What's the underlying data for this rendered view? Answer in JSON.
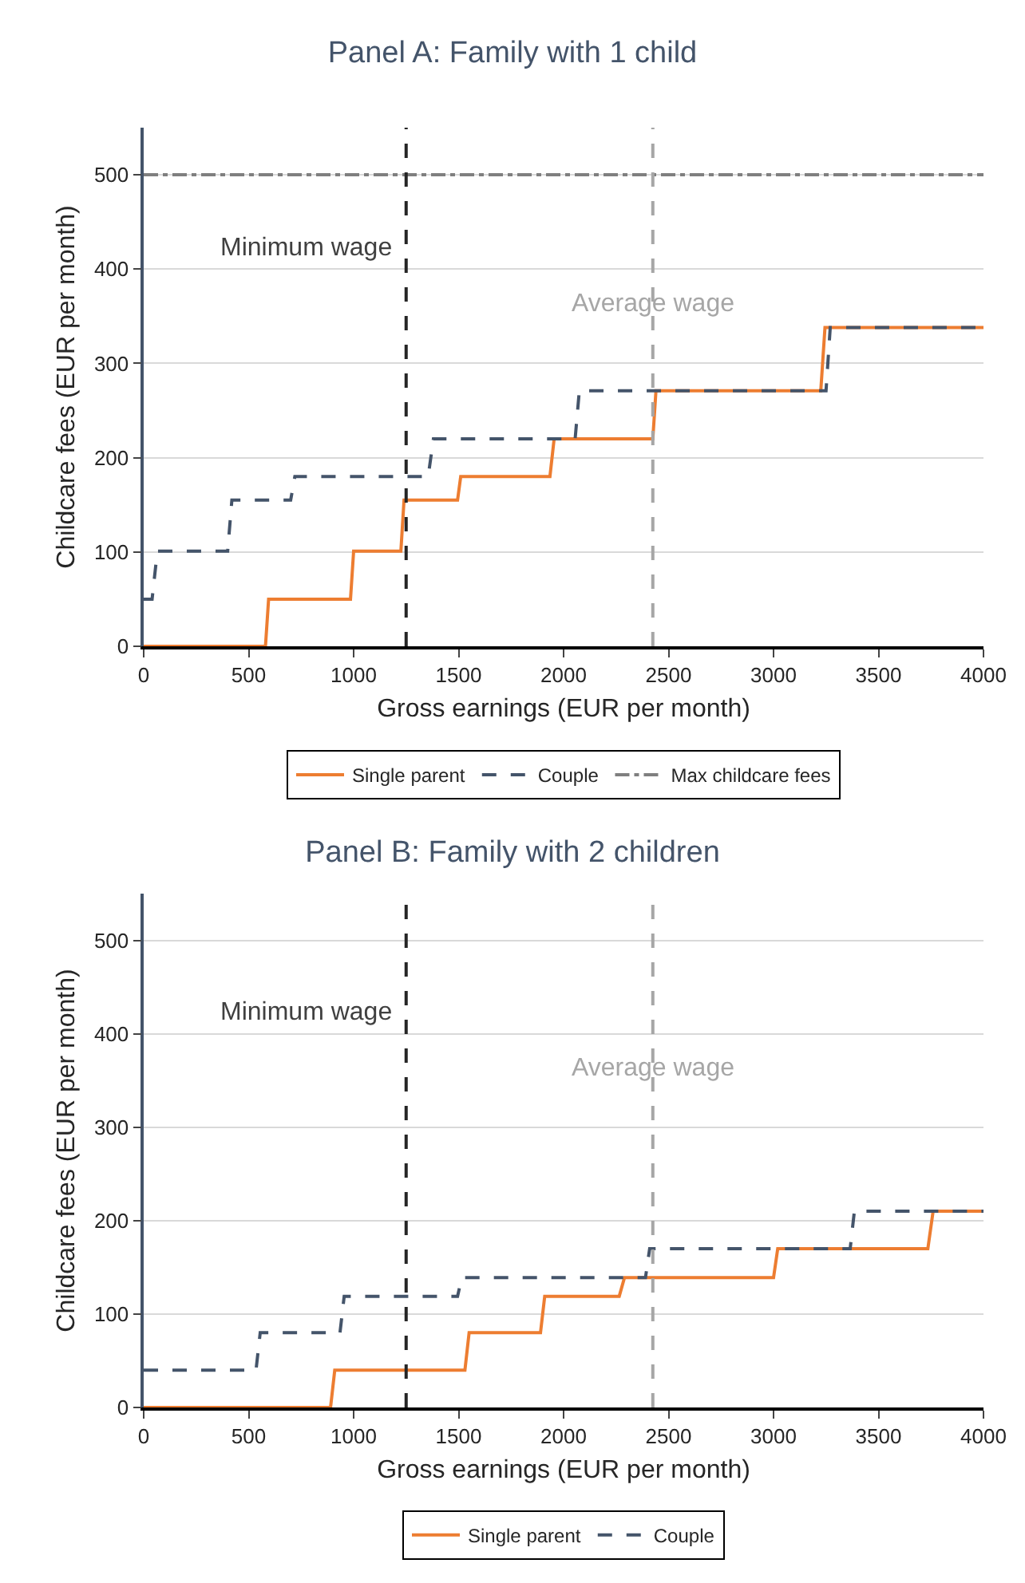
{
  "chart_data": [
    {
      "type": "line",
      "title": "Panel A: Family with 1 child",
      "xlabel": "Gross earnings (EUR per month)",
      "ylabel": "Childcare fees (EUR per month)",
      "xlim": [
        0,
        4000
      ],
      "xticks": [
        0,
        500,
        1000,
        1500,
        2000,
        2500,
        3000,
        3500,
        4000
      ],
      "ylim": [
        0,
        550
      ],
      "yticks": [
        0,
        100,
        200,
        300,
        400,
        500
      ],
      "grid": "y",
      "legend": "bottom",
      "series": [
        {
          "name": "Single parent",
          "color": "#ed7d31",
          "line_style": "solid",
          "x": [
            0,
            580,
            595,
            985,
            1000,
            1225,
            1240,
            1495,
            1510,
            1935,
            1955,
            2425,
            2440,
            3225,
            3245,
            4000
          ],
          "values": [
            0,
            0,
            50,
            50,
            101,
            101,
            155,
            155,
            180,
            180,
            220,
            220,
            271,
            271,
            338,
            338
          ]
        },
        {
          "name": "Couple",
          "color": "#44546a",
          "line_style": "dashed",
          "x": [
            0,
            40,
            65,
            400,
            420,
            700,
            720,
            1355,
            1380,
            2055,
            2075,
            3250,
            3270,
            4000
          ],
          "values": [
            50,
            50,
            101,
            101,
            155,
            155,
            180,
            180,
            220,
            220,
            271,
            271,
            338,
            338
          ]
        },
        {
          "name": "Max childcare fees",
          "color": "#7f7f7f",
          "line_style": "dashdot",
          "x": [
            0,
            4000
          ],
          "values": [
            500,
            500
          ]
        }
      ],
      "ref_lines": [
        {
          "axis": "x",
          "value": 1250,
          "label": "Minimum wage",
          "color": "#262626",
          "line_style": "dashed"
        },
        {
          "axis": "x",
          "value": 2425,
          "label": "Average wage",
          "color": "#a6a6a6",
          "line_style": "dashed"
        }
      ]
    },
    {
      "type": "line",
      "title": "Panel B: Family with 2 children",
      "xlabel": "Gross earnings (EUR per month)",
      "ylabel": "Childcare fees (EUR per month)",
      "xlim": [
        0,
        4000
      ],
      "xticks": [
        0,
        500,
        1000,
        1500,
        2000,
        2500,
        3000,
        3500,
        4000
      ],
      "ylim": [
        0,
        550
      ],
      "yticks": [
        0,
        100,
        200,
        300,
        400,
        500
      ],
      "grid": "y",
      "legend": "bottom",
      "series": [
        {
          "name": "Single parent",
          "color": "#ed7d31",
          "line_style": "solid",
          "x": [
            0,
            890,
            910,
            1530,
            1550,
            1890,
            1910,
            2265,
            2290,
            3000,
            3020,
            3735,
            3760,
            4000
          ],
          "values": [
            0,
            0,
            40,
            40,
            80,
            80,
            119,
            119,
            139,
            139,
            170,
            170,
            210,
            210
          ]
        },
        {
          "name": "Couple",
          "color": "#44546a",
          "line_style": "dashed",
          "x": [
            0,
            535,
            555,
            935,
            955,
            1495,
            1515,
            2390,
            2410,
            3365,
            3385,
            4000
          ],
          "values": [
            40,
            40,
            80,
            80,
            119,
            119,
            139,
            139,
            170,
            170,
            210,
            210
          ]
        }
      ],
      "ref_lines": [
        {
          "axis": "x",
          "value": 1250,
          "label": "Minimum wage",
          "color": "#262626",
          "line_style": "dashed"
        },
        {
          "axis": "x",
          "value": 2425,
          "label": "Average wage",
          "color": "#a6a6a6",
          "line_style": "dashed"
        }
      ]
    }
  ]
}
